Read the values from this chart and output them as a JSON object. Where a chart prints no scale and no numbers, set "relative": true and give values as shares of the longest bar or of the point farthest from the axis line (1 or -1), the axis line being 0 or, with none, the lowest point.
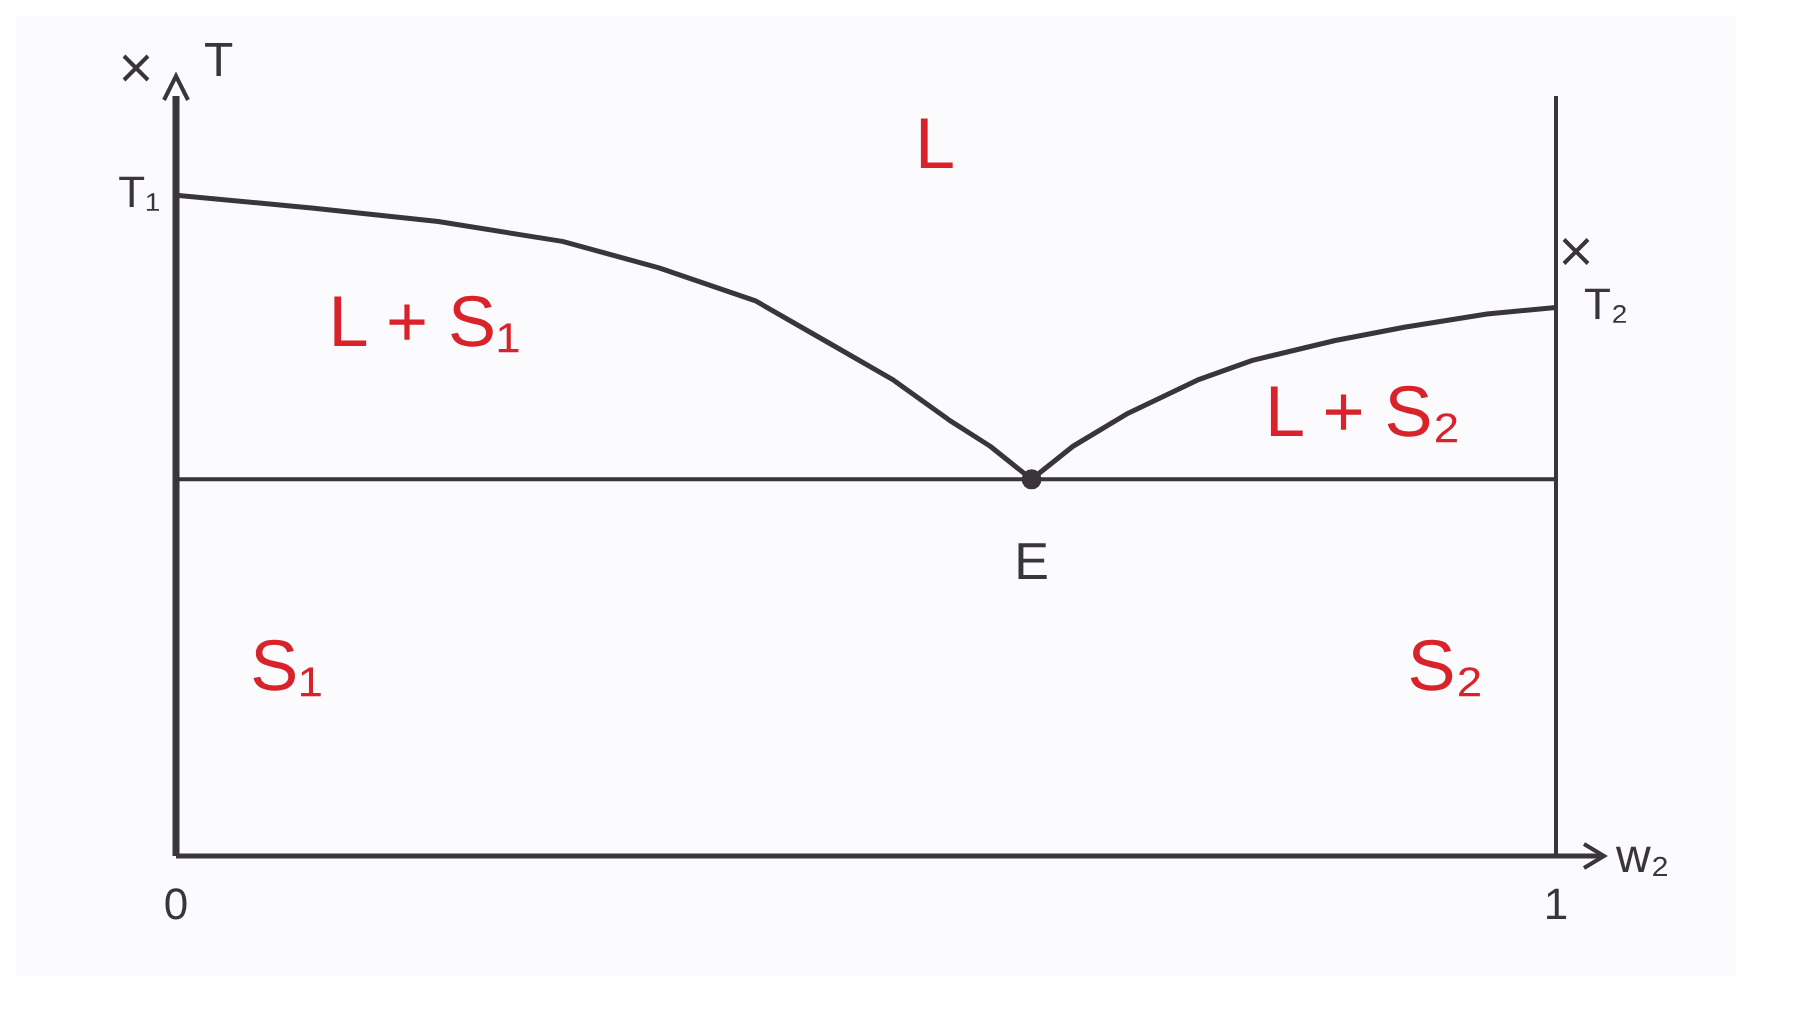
{
  "chart_data": {
    "type": "line",
    "relative": true,
    "xlabel": "w₂",
    "ylabel": "T",
    "xlim": [
      0,
      1
    ],
    "xticks": [
      0,
      1
    ],
    "series": [
      {
        "color": "#3a3538",
        "x": [
          0,
          0.1,
          0.19,
          0.28,
          0.35,
          0.42,
          0.47,
          0.52,
          0.56,
          0.59,
          0.62,
          0.65,
          0.69,
          0.74,
          0.78,
          0.84,
          0.89,
          0.95,
          1
        ],
        "values": [
          1,
          0.98,
          0.96,
          0.93,
          0.89,
          0.84,
          0.78,
          0.72,
          0.66,
          0.62,
          0.57,
          0.62,
          0.67,
          0.72,
          0.75,
          0.78,
          0.8,
          0.82,
          0.83
        ]
      },
      {
        "type": "scatter",
        "color": "#3a3538",
        "x": [
          0.62
        ],
        "values": [
          0.57
        ]
      }
    ],
    "ref_lines": [
      {
        "axis": "y",
        "value": 0.57,
        "color": "#3a3538"
      },
      {
        "axis": "x",
        "value": 1,
        "color": "#3a3538"
      }
    ],
    "annotations": [
      "L",
      "L + S₁",
      "L + S₂",
      "S₁",
      "S₂",
      {
        "text": "E",
        "x": 0.62,
        "y": 0.57
      },
      {
        "text": "T₁",
        "x": 0,
        "y": 1
      },
      {
        "text": "T₂",
        "x": 1,
        "y": 0.83
      }
    ]
  }
}
